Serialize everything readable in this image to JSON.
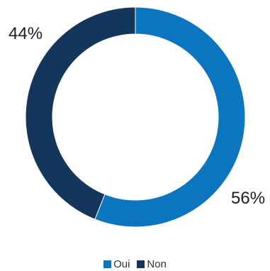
{
  "chart_data": {
    "type": "pie",
    "donut": true,
    "title": "",
    "categories": [
      "Oui",
      "Non"
    ],
    "values": [
      56,
      44
    ],
    "value_labels": [
      "56%",
      "44%"
    ],
    "colors": [
      "#0c75c0",
      "#14365c"
    ],
    "legend_position": "bottom-center"
  }
}
